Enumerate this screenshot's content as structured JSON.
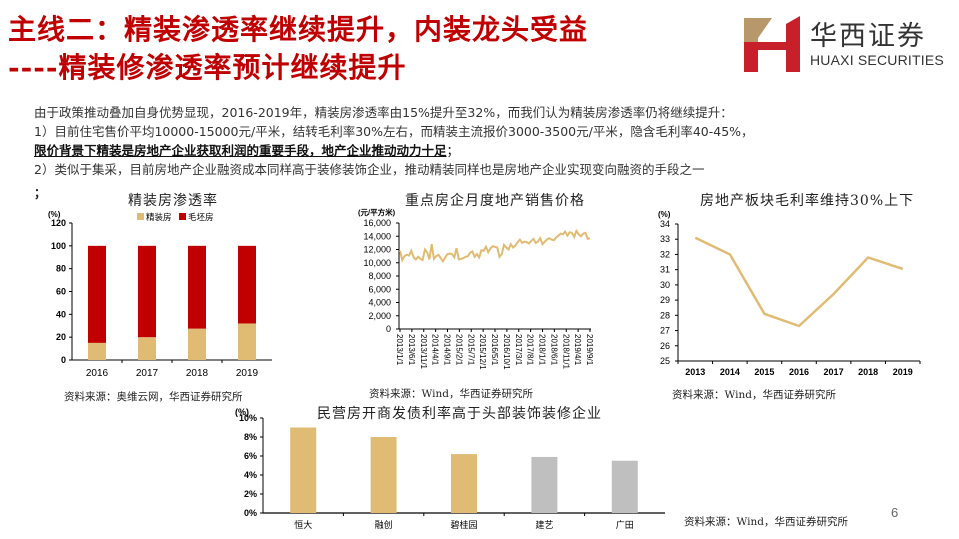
{
  "header": {
    "title_line1": "主线二：精装渗透率继续提升，内装龙头受益",
    "title_line2": "----精装修渗透率预计继续提升"
  },
  "logo": {
    "name_cn": "华西证券",
    "name_en": "HUAXI SECURITIES",
    "colors": {
      "red": "#c8202a",
      "gold": "#b8976a"
    }
  },
  "body": {
    "line1": "由于政策推动叠加自身优势显现，2016-2019年，精装房渗透率由15%提升至32%，而我们认为精装房渗透率仍将继续提升：",
    "line2": "1）目前住宅售价平均10000-15000元/平米，结转毛利率30%左右，而精装主流报价3000-3500元/平米，隐含毛利率40-45%，",
    "line3_bold": "限价背景下精装是房地产企业获取利润的重要手段，地产企业推动动力十足",
    "line3_tail": "；",
    "line4": "2）类似于集采，目前房地产企业融资成本同样高于装修装饰企业，推动精装同样也是房地产企业实现变向融资的手段之一",
    "semicolon": "；"
  },
  "page_number": "6",
  "colors": {
    "gold": "#e0bb73",
    "red": "#c00000",
    "gray": "#bfbfbf",
    "title_red": "#c00000"
  },
  "chart_data": [
    {
      "type": "bar",
      "stacked": true,
      "title": "精装房渗透率",
      "ylabel": "(%)",
      "ylim": [
        0,
        120
      ],
      "yticks": [
        "0",
        "20",
        "40",
        "60",
        "80",
        "100",
        "120"
      ],
      "categories": [
        "2016",
        "2017",
        "2018",
        "2019"
      ],
      "series": [
        {
          "name": "精装房",
          "color": "#e0bb73",
          "values": [
            15,
            20,
            27.5,
            32
          ]
        },
        {
          "name": "毛坯房",
          "color": "#c00000",
          "values": [
            85,
            80,
            72.5,
            68
          ]
        }
      ],
      "legend_position": "top",
      "source": "资料来源：奥维云网，华西证券研究所"
    },
    {
      "type": "line",
      "title": "重点房企月度地产销售价格",
      "ylabel": "(元/平方米)",
      "ylim": [
        0,
        16000
      ],
      "yticks": [
        "0",
        "2,000",
        "4,000",
        "6,000",
        "8,000",
        "10,000",
        "12,000",
        "14,000",
        "16,000"
      ],
      "xticks": [
        "2013/1/1",
        "2013/6/1",
        "2013/11/1",
        "2014/4/1",
        "2014/9/1",
        "2015/2/1",
        "2015/7/1",
        "2015/12/1",
        "2016/5/1",
        "2016/10/1",
        "2017/3/1",
        "2017/8/1",
        "2018/1/1",
        "2018/6/1",
        "2018/11/1",
        "2019/4/1",
        "2019/9/1"
      ],
      "series": [
        {
          "name": "销售价格",
          "color": "#e0bb73",
          "values": [
            11800,
            10400,
            11000,
            11200,
            11100,
            11800,
            10800,
            10500,
            10900,
            10600,
            10400,
            12000,
            11600,
            10500,
            12800,
            10600,
            11000,
            11200,
            10700,
            10200,
            10800,
            11300,
            11400,
            11300,
            10800,
            12200,
            10500,
            10600,
            10700,
            10900,
            11000,
            11500,
            11700,
            10900,
            11300,
            10800,
            11900,
            11800,
            12400,
            11600,
            12200,
            12500,
            12400,
            12300,
            10900,
            11300,
            12700,
            12300,
            12000,
            12800,
            12300,
            12600,
            13100,
            13500,
            13000,
            13200,
            13100,
            12900,
            13300,
            13600,
            13000,
            13200,
            13700,
            12800,
            13200,
            13500,
            13700,
            13500,
            13400,
            13800,
            14100,
            14400,
            14300,
            14700,
            14100,
            14600,
            14500,
            13900,
            14800,
            14300,
            14000,
            14400,
            14500,
            13600,
            13700
          ]
        }
      ],
      "source": "资料来源：Wind，华西证券研究所"
    },
    {
      "type": "line",
      "title": "房地产板块毛利率维持30%上下",
      "ylabel": "(%)",
      "ylim": [
        25,
        34
      ],
      "yticks": [
        "25",
        "26",
        "27",
        "28",
        "29",
        "30",
        "31",
        "32",
        "33",
        "34"
      ],
      "categories": [
        "2013",
        "2014",
        "2015",
        "2016",
        "2017",
        "2018",
        "2019"
      ],
      "series": [
        {
          "name": "毛利率",
          "color": "#e0bb73",
          "values": [
            33.1,
            32.0,
            28.1,
            27.3,
            29.4,
            31.8,
            31.05
          ]
        }
      ],
      "source": "资料来源：Wind，华西证券研究所"
    },
    {
      "type": "bar",
      "title": "民营房开商发债利率高于头部装饰装修企业",
      "ylabel": "(%)",
      "ylim": [
        0,
        10
      ],
      "yticks": [
        "0%",
        "2%",
        "4%",
        "6%",
        "8%",
        "10%"
      ],
      "categories": [
        "恒大",
        "融创",
        "碧桂园",
        "建艺",
        "广田"
      ],
      "values": [
        9.0,
        8.0,
        6.2,
        5.9,
        5.5
      ],
      "bar_colors": [
        "#e0bb73",
        "#e0bb73",
        "#e0bb73",
        "#bfbfbf",
        "#bfbfbf"
      ],
      "source": "资料来源：Wind，华西证券研究所"
    }
  ]
}
